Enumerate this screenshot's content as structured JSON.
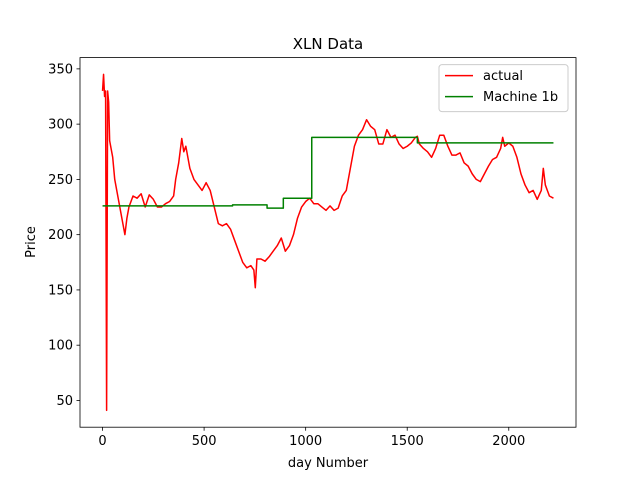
{
  "chart_data": {
    "type": "line",
    "title": "XLN Data",
    "x_label": "day Number",
    "y_label": "Price",
    "xlim": [
      -111,
      2331
    ],
    "ylim": [
      25.8,
      360.2
    ],
    "xticks": [
      0,
      500,
      1000,
      1500,
      2000
    ],
    "yticks": [
      50,
      100,
      150,
      200,
      250,
      300,
      350
    ],
    "legend": "upper right",
    "series": [
      {
        "name": "actual",
        "color": "#ff0000",
        "x": [
          0,
          5,
          10,
          15,
          20,
          25,
          30,
          35,
          50,
          60,
          80,
          100,
          110,
          120,
          130,
          150,
          170,
          190,
          210,
          230,
          250,
          270,
          290,
          310,
          330,
          350,
          360,
          375,
          390,
          400,
          410,
          430,
          450,
          470,
          490,
          510,
          530,
          550,
          570,
          590,
          610,
          630,
          650,
          670,
          690,
          710,
          730,
          745,
          752,
          760,
          780,
          800,
          820,
          840,
          860,
          880,
          900,
          920,
          940,
          960,
          980,
          1000,
          1020,
          1040,
          1060,
          1080,
          1100,
          1120,
          1140,
          1160,
          1180,
          1200,
          1220,
          1240,
          1260,
          1280,
          1300,
          1320,
          1340,
          1360,
          1380,
          1400,
          1420,
          1440,
          1460,
          1480,
          1500,
          1520,
          1540,
          1550,
          1560,
          1580,
          1600,
          1620,
          1640,
          1660,
          1680,
          1700,
          1720,
          1740,
          1760,
          1780,
          1800,
          1820,
          1840,
          1860,
          1880,
          1900,
          1920,
          1940,
          1960,
          1970,
          1980,
          2000,
          2020,
          2040,
          2060,
          2080,
          2100,
          2120,
          2140,
          2160,
          2170,
          2180,
          2190,
          2200,
          2220
        ],
        "values": [
          330,
          345,
          325,
          330,
          41,
          330,
          320,
          285,
          270,
          250,
          230,
          210,
          200,
          215,
          225,
          235,
          233,
          237,
          225,
          236,
          232,
          225,
          225,
          228,
          230,
          235,
          250,
          265,
          287,
          275,
          280,
          260,
          250,
          245,
          240,
          247,
          240,
          225,
          210,
          208,
          210,
          205,
          195,
          185,
          175,
          170,
          172,
          168,
          152,
          178,
          178,
          176,
          180,
          185,
          190,
          197,
          185,
          190,
          200,
          215,
          225,
          230,
          233,
          228,
          228,
          225,
          222,
          226,
          222,
          224,
          235,
          240,
          260,
          280,
          290,
          295,
          304,
          298,
          295,
          282,
          282,
          295,
          288,
          290,
          282,
          278,
          280,
          283,
          288,
          289,
          282,
          278,
          275,
          270,
          278,
          290,
          290,
          280,
          272,
          272,
          274,
          265,
          262,
          255,
          250,
          248,
          255,
          262,
          268,
          270,
          278,
          288,
          280,
          283,
          280,
          270,
          255,
          245,
          238,
          240,
          232,
          240,
          260,
          245,
          240,
          235,
          233
        ]
      },
      {
        "name": "Machine 1b",
        "color": "#008000",
        "x": [
          0,
          640,
          640,
          810,
          810,
          890,
          890,
          1030,
          1030,
          1550,
          1550,
          2220
        ],
        "values": [
          226,
          226,
          227,
          227,
          224,
          224,
          233,
          233,
          288,
          288,
          283,
          283
        ]
      }
    ]
  }
}
